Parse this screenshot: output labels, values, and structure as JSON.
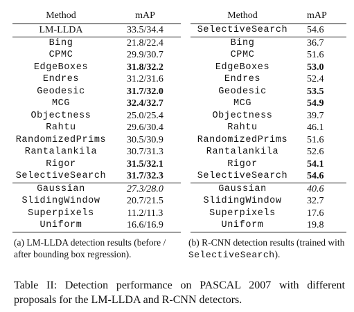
{
  "table_a": {
    "header": {
      "method": "Method",
      "map": "mAP"
    },
    "reference": {
      "method": "LM-LLDA",
      "map": "33.5/34.4"
    },
    "proposals": [
      {
        "method": "Bing",
        "map": "21.8/22.4",
        "style": ""
      },
      {
        "method": "CPMC",
        "map": "29.9/30.7",
        "style": ""
      },
      {
        "method": "EdgeBoxes",
        "map": "31.8/32.2",
        "style": "bold"
      },
      {
        "method": "Endres",
        "map": "31.2/31.6",
        "style": ""
      },
      {
        "method": "Geodesic",
        "map": "31.7/32.0",
        "style": "bold"
      },
      {
        "method": "MCG",
        "map": "32.4/32.7",
        "style": "bold"
      },
      {
        "method": "Objectness",
        "map": "25.0/25.4",
        "style": ""
      },
      {
        "method": "Rahtu",
        "map": "29.6/30.4",
        "style": ""
      },
      {
        "method": "RandomizedPrims",
        "map": "30.5/30.9",
        "style": ""
      },
      {
        "method": "Rantalankila",
        "map": "30.7/31.3",
        "style": ""
      },
      {
        "method": "Rigor",
        "map": "31.5/32.1",
        "style": "bold"
      },
      {
        "method": "SelectiveSearch",
        "map": "31.7/32.3",
        "style": "bold"
      }
    ],
    "baselines": [
      {
        "method": "Gaussian",
        "map": "27.3/28.0",
        "style": "italic"
      },
      {
        "method": "SlidingWindow",
        "map": "20.7/21.5",
        "style": ""
      },
      {
        "method": "Superpixels",
        "map": "11.2/11.3",
        "style": ""
      },
      {
        "method": "Uniform",
        "map": "16.6/16.9",
        "style": ""
      }
    ],
    "caption": {
      "part1": "(a) LM-LLDA detection results (before / after bounding box regression)."
    }
  },
  "table_b": {
    "header": {
      "method": "Method",
      "map": "mAP"
    },
    "reference": {
      "method": "SelectiveSearch",
      "map": "54.6"
    },
    "proposals": [
      {
        "method": "Bing",
        "map": "36.7",
        "style": ""
      },
      {
        "method": "CPMC",
        "map": "51.6",
        "style": ""
      },
      {
        "method": "EdgeBoxes",
        "map": "53.0",
        "style": "bold"
      },
      {
        "method": "Endres",
        "map": "52.4",
        "style": ""
      },
      {
        "method": "Geodesic",
        "map": "53.5",
        "style": "bold"
      },
      {
        "method": "MCG",
        "map": "54.9",
        "style": "bold"
      },
      {
        "method": "Objectness",
        "map": "39.7",
        "style": ""
      },
      {
        "method": "Rahtu",
        "map": "46.1",
        "style": ""
      },
      {
        "method": "RandomizedPrims",
        "map": "51.6",
        "style": ""
      },
      {
        "method": "Rantalankila",
        "map": "52.6",
        "style": ""
      },
      {
        "method": "Rigor",
        "map": "54.1",
        "style": "bold"
      },
      {
        "method": "SelectiveSearch",
        "map": "54.6",
        "style": "bold"
      }
    ],
    "baselines": [
      {
        "method": "Gaussian",
        "map": "40.6",
        "style": "italic"
      },
      {
        "method": "SlidingWindow",
        "map": "32.7",
        "style": ""
      },
      {
        "method": "Superpixels",
        "map": "17.6",
        "style": ""
      },
      {
        "method": "Uniform",
        "map": "19.8",
        "style": ""
      }
    ],
    "caption": {
      "part1": "(b) R-CNN detection results (trained with ",
      "mono": "SelectiveSearch",
      "part2": ")."
    }
  },
  "main_caption": "Table II: Detection performance on PASCAL 2007 with different proposals for the LM-LLDA and R-CNN detectors."
}
